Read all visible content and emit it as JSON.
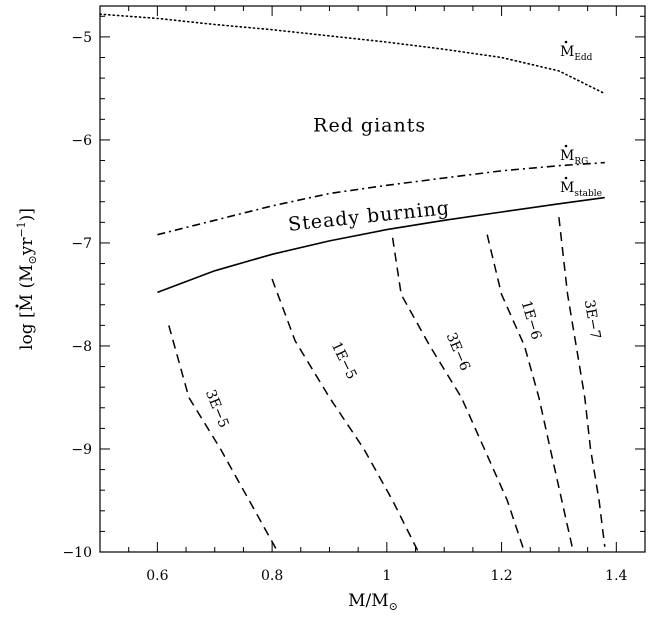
{
  "chart_data": {
    "type": "line",
    "xlabel": "M/M",
    "xlabel_symbol": "⊙",
    "ylabel_prefix": "log [",
    "ylabel_mdot": "M",
    "ylabel_mid": " (M",
    "ylabel_symbol": "⊙",
    "ylabel_unit": "yr",
    "ylabel_exp": "−1",
    "ylabel_suffix": ")]",
    "xlim": [
      0.5,
      1.45
    ],
    "ylim": [
      -10,
      -4.7
    ],
    "x_ticks": [
      0.6,
      0.8,
      1.0,
      1.2,
      1.4
    ],
    "x_tick_labels": [
      "0.6",
      "0.8",
      "1",
      "1.2",
      "1.4"
    ],
    "y_ticks": [
      -10,
      -9,
      -8,
      -7,
      -6,
      -5
    ],
    "y_tick_labels": [
      "−10",
      "−9",
      "−8",
      "−7",
      "−6",
      "−5"
    ],
    "boundary_lines": [
      {
        "label": "M",
        "subscript": "Edd",
        "style": "dotted",
        "points": [
          [
            0.5,
            -4.78
          ],
          [
            0.6,
            -4.82
          ],
          [
            0.7,
            -4.88
          ],
          [
            0.8,
            -4.93
          ],
          [
            0.9,
            -4.99
          ],
          [
            1.0,
            -5.05
          ],
          [
            1.1,
            -5.12
          ],
          [
            1.2,
            -5.2
          ],
          [
            1.3,
            -5.33
          ],
          [
            1.38,
            -5.55
          ]
        ]
      },
      {
        "label": "M",
        "subscript": "RG",
        "style": "dashdot",
        "points": [
          [
            0.6,
            -6.92
          ],
          [
            0.7,
            -6.78
          ],
          [
            0.8,
            -6.64
          ],
          [
            0.9,
            -6.52
          ],
          [
            1.0,
            -6.44
          ],
          [
            1.1,
            -6.37
          ],
          [
            1.2,
            -6.3
          ],
          [
            1.3,
            -6.25
          ],
          [
            1.38,
            -6.22
          ]
        ]
      },
      {
        "label": "M",
        "subscript": "stable",
        "style": "solid",
        "points": [
          [
            0.6,
            -7.48
          ],
          [
            0.7,
            -7.27
          ],
          [
            0.8,
            -7.11
          ],
          [
            0.9,
            -6.98
          ],
          [
            1.0,
            -6.87
          ],
          [
            1.1,
            -6.78
          ],
          [
            1.2,
            -6.7
          ],
          [
            1.3,
            -6.62
          ],
          [
            1.38,
            -6.56
          ]
        ]
      }
    ],
    "series": [
      {
        "name": "3E−5",
        "style": "dashed",
        "points": [
          [
            0.62,
            -7.8
          ],
          [
            0.655,
            -8.5
          ],
          [
            0.71,
            -9.0
          ],
          [
            0.76,
            -9.5
          ],
          [
            0.81,
            -10.0
          ]
        ]
      },
      {
        "name": "1E−5",
        "style": "dashed",
        "points": [
          [
            0.8,
            -7.35
          ],
          [
            0.84,
            -7.95
          ],
          [
            0.9,
            -8.5
          ],
          [
            0.96,
            -9.0
          ],
          [
            1.01,
            -9.5
          ],
          [
            1.055,
            -10.0
          ]
        ]
      },
      {
        "name": "3E−6",
        "style": "dashed",
        "points": [
          [
            1.01,
            -6.95
          ],
          [
            1.025,
            -7.5
          ],
          [
            1.075,
            -8.0
          ],
          [
            1.13,
            -8.5
          ],
          [
            1.17,
            -9.0
          ],
          [
            1.21,
            -9.5
          ],
          [
            1.24,
            -10.0
          ]
        ]
      },
      {
        "name": "1E−6",
        "style": "dashed",
        "points": [
          [
            1.175,
            -6.92
          ],
          [
            1.2,
            -7.5
          ],
          [
            1.24,
            -8.0
          ],
          [
            1.265,
            -8.5
          ],
          [
            1.285,
            -9.0
          ],
          [
            1.305,
            -9.5
          ],
          [
            1.325,
            -10.0
          ]
        ]
      },
      {
        "name": "3E−7",
        "style": "dashed",
        "points": [
          [
            1.3,
            -6.75
          ],
          [
            1.315,
            -7.5
          ],
          [
            1.33,
            -8.0
          ],
          [
            1.345,
            -8.5
          ],
          [
            1.355,
            -9.0
          ],
          [
            1.37,
            -9.5
          ],
          [
            1.38,
            -9.95
          ]
        ]
      }
    ],
    "annotations": [
      {
        "text": "Red giants",
        "x": 0.97,
        "y": -5.92
      },
      {
        "text": "Steady burning",
        "x": 0.97,
        "y": -6.8
      }
    ]
  }
}
